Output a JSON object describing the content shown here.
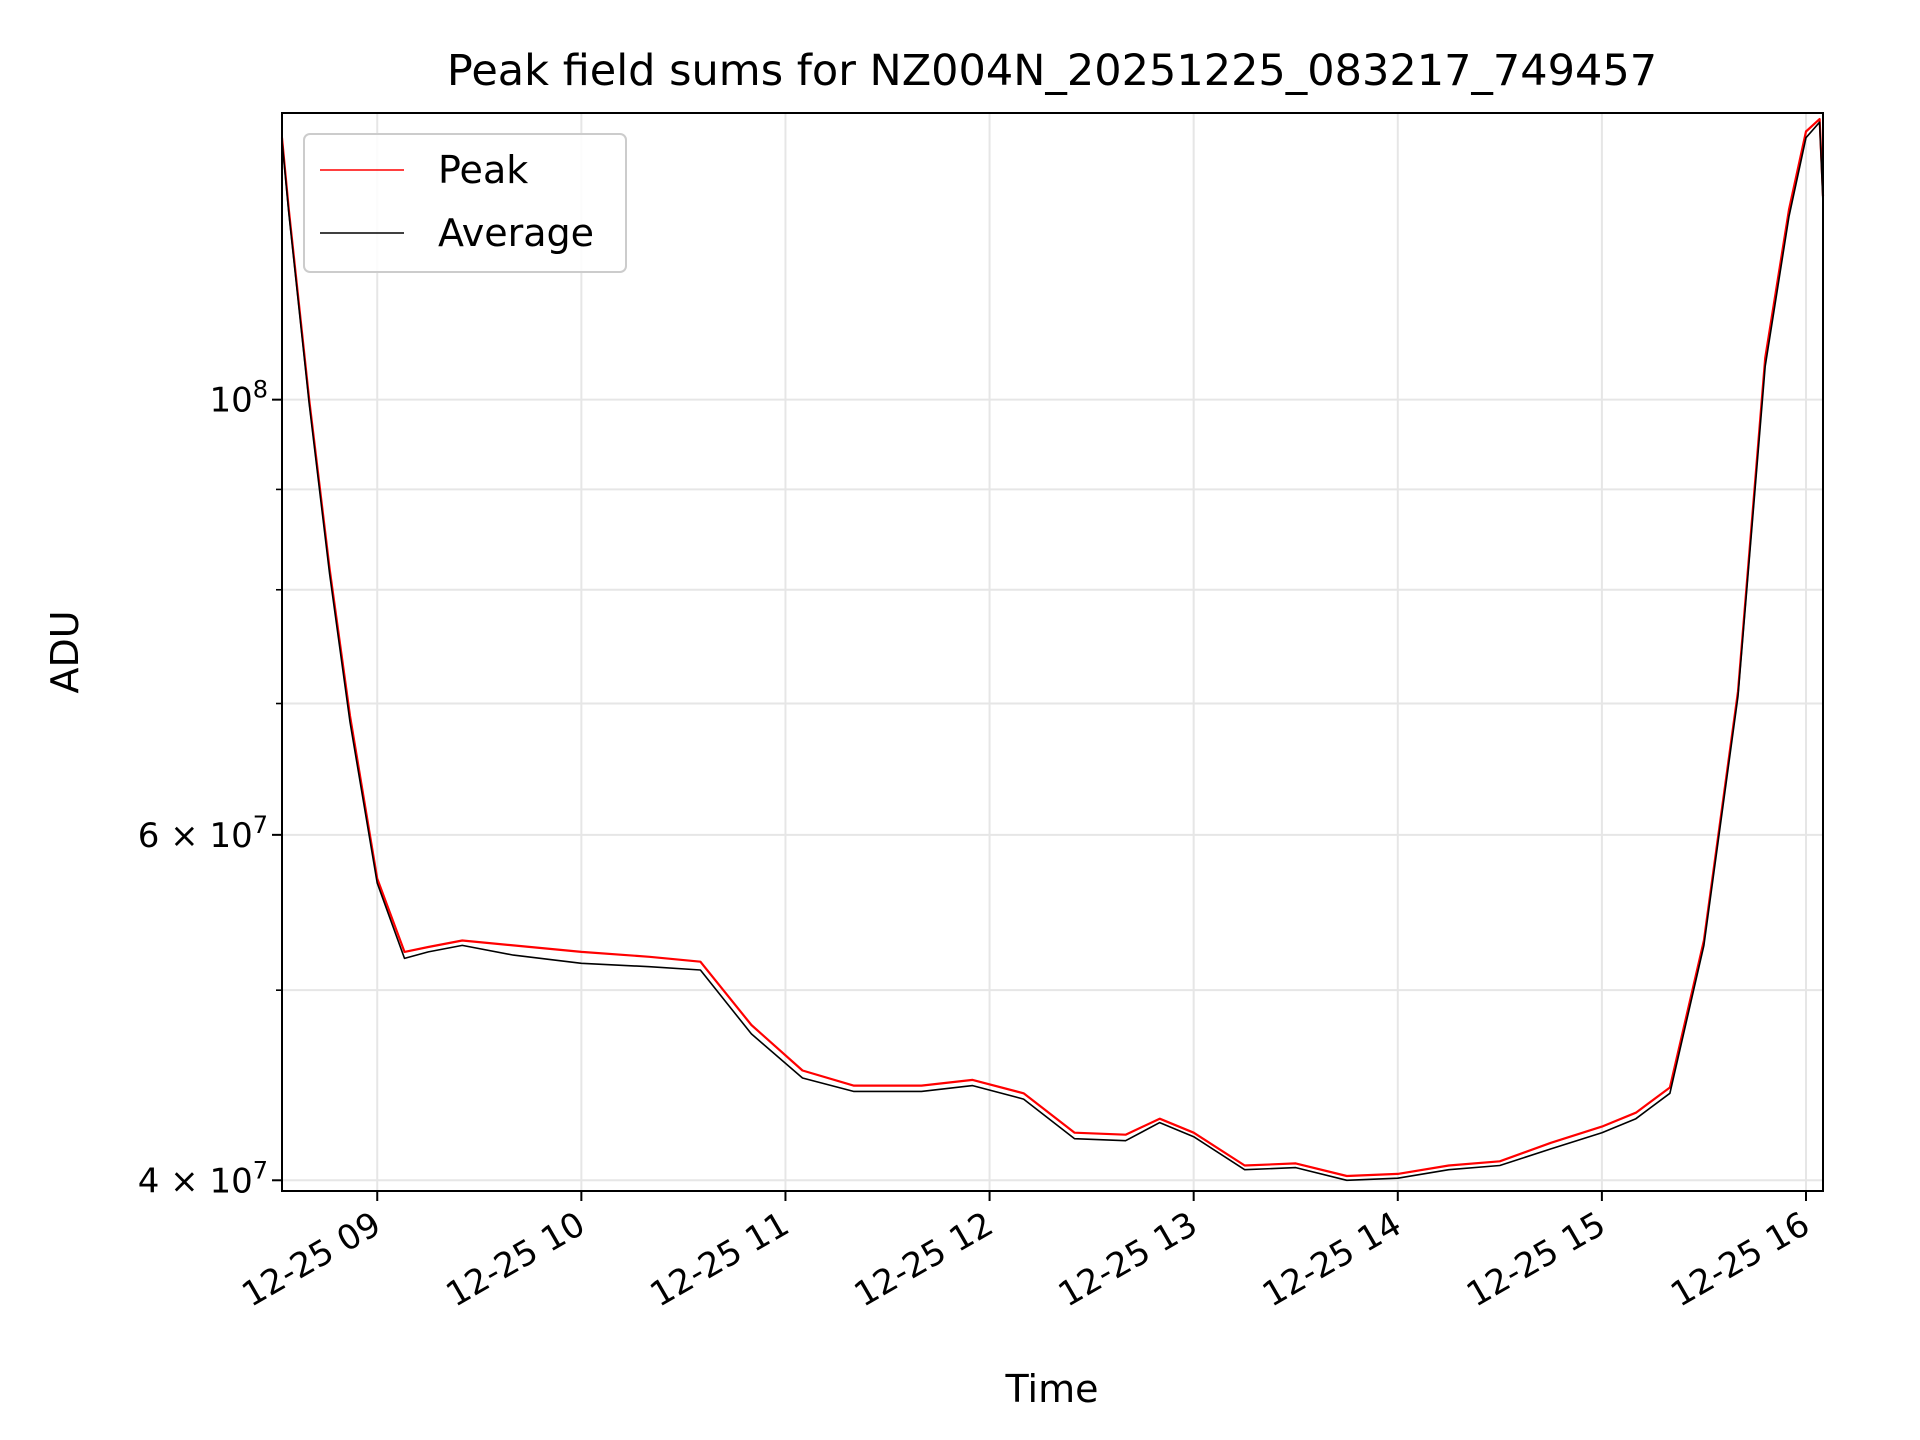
{
  "chart_data": {
    "type": "line",
    "title": "Peak field sums for NZ004N_20251225_083217_749457",
    "xlabel": "Time",
    "ylabel": "ADU",
    "y_scale": "log",
    "grid": true,
    "legend_position": "upper-left",
    "xlim": [
      "2025-12-25 08:32",
      "2025-12-25 16:05"
    ],
    "ylim": [
      39500000,
      140000000
    ],
    "x_ticks": [
      "12-25 09",
      "12-25 10",
      "12-25 11",
      "12-25 12",
      "12-25 13",
      "12-25 14",
      "12-25 15",
      "12-25 16"
    ],
    "y_ticks": [
      {
        "value": 40000000,
        "label_base": "4",
        "label_exp": "7"
      },
      {
        "value": 60000000,
        "label_base": "6",
        "label_exp": "7"
      },
      {
        "value": 100000000,
        "label_base": "",
        "label_exp": "8"
      }
    ],
    "y_minor_ticks": [
      50000000,
      70000000,
      80000000,
      90000000
    ],
    "series": [
      {
        "name": "Peak",
        "color": "#ff0000",
        "points": [
          [
            "2025-12-25 08:32",
            136000000
          ],
          [
            "2025-12-25 08:34",
            125000000
          ],
          [
            "2025-12-25 08:40",
            100000000
          ],
          [
            "2025-12-25 08:46",
            82000000
          ],
          [
            "2025-12-25 08:52",
            69000000
          ],
          [
            "2025-12-25 09:00",
            57000000
          ],
          [
            "2025-12-25 09:08",
            52300000
          ],
          [
            "2025-12-25 09:15",
            52600000
          ],
          [
            "2025-12-25 09:25",
            53000000
          ],
          [
            "2025-12-25 09:40",
            52700000
          ],
          [
            "2025-12-25 10:00",
            52300000
          ],
          [
            "2025-12-25 10:20",
            52000000
          ],
          [
            "2025-12-25 10:35",
            51700000
          ],
          [
            "2025-12-25 10:50",
            48000000
          ],
          [
            "2025-12-25 11:05",
            45500000
          ],
          [
            "2025-12-25 11:20",
            44700000
          ],
          [
            "2025-12-25 11:40",
            44700000
          ],
          [
            "2025-12-25 11:55",
            45000000
          ],
          [
            "2025-12-25 12:10",
            44300000
          ],
          [
            "2025-12-25 12:25",
            42300000
          ],
          [
            "2025-12-25 12:40",
            42200000
          ],
          [
            "2025-12-25 12:50",
            43000000
          ],
          [
            "2025-12-25 13:00",
            42300000
          ],
          [
            "2025-12-25 13:15",
            40700000
          ],
          [
            "2025-12-25 13:30",
            40800000
          ],
          [
            "2025-12-25 13:45",
            40200000
          ],
          [
            "2025-12-25 14:00",
            40300000
          ],
          [
            "2025-12-25 14:15",
            40700000
          ],
          [
            "2025-12-25 14:30",
            40900000
          ],
          [
            "2025-12-25 14:45",
            41800000
          ],
          [
            "2025-12-25 15:00",
            42600000
          ],
          [
            "2025-12-25 15:10",
            43300000
          ],
          [
            "2025-12-25 15:20",
            44600000
          ],
          [
            "2025-12-25 15:30",
            53000000
          ],
          [
            "2025-12-25 15:40",
            71000000
          ],
          [
            "2025-12-25 15:48",
            105000000
          ],
          [
            "2025-12-25 15:55",
            125000000
          ],
          [
            "2025-12-25 16:00",
            137000000
          ],
          [
            "2025-12-25 16:04",
            139000000
          ],
          [
            "2025-12-25 16:05",
            127000000
          ]
        ]
      },
      {
        "name": "Average",
        "color": "#000000",
        "points": [
          [
            "2025-12-25 08:32",
            135500000
          ],
          [
            "2025-12-25 08:34",
            124500000
          ],
          [
            "2025-12-25 08:40",
            99500000
          ],
          [
            "2025-12-25 08:46",
            81500000
          ],
          [
            "2025-12-25 08:52",
            68500000
          ],
          [
            "2025-12-25 09:00",
            56700000
          ],
          [
            "2025-12-25 09:08",
            51900000
          ],
          [
            "2025-12-25 09:15",
            52300000
          ],
          [
            "2025-12-25 09:25",
            52700000
          ],
          [
            "2025-12-25 09:40",
            52100000
          ],
          [
            "2025-12-25 10:00",
            51600000
          ],
          [
            "2025-12-25 10:20",
            51400000
          ],
          [
            "2025-12-25 10:35",
            51200000
          ],
          [
            "2025-12-25 10:50",
            47500000
          ],
          [
            "2025-12-25 11:05",
            45100000
          ],
          [
            "2025-12-25 11:20",
            44400000
          ],
          [
            "2025-12-25 11:40",
            44400000
          ],
          [
            "2025-12-25 11:55",
            44700000
          ],
          [
            "2025-12-25 12:10",
            44000000
          ],
          [
            "2025-12-25 12:25",
            42000000
          ],
          [
            "2025-12-25 12:40",
            41900000
          ],
          [
            "2025-12-25 12:50",
            42800000
          ],
          [
            "2025-12-25 13:00",
            42100000
          ],
          [
            "2025-12-25 13:15",
            40500000
          ],
          [
            "2025-12-25 13:30",
            40600000
          ],
          [
            "2025-12-25 13:45",
            40000000
          ],
          [
            "2025-12-25 14:00",
            40100000
          ],
          [
            "2025-12-25 14:15",
            40500000
          ],
          [
            "2025-12-25 14:30",
            40700000
          ],
          [
            "2025-12-25 14:45",
            41500000
          ],
          [
            "2025-12-25 15:00",
            42300000
          ],
          [
            "2025-12-25 15:10",
            43000000
          ],
          [
            "2025-12-25 15:20",
            44300000
          ],
          [
            "2025-12-25 15:30",
            52700000
          ],
          [
            "2025-12-25 15:40",
            70600000
          ],
          [
            "2025-12-25 15:48",
            104000000
          ],
          [
            "2025-12-25 15:55",
            124000000
          ],
          [
            "2025-12-25 16:00",
            136000000
          ],
          [
            "2025-12-25 16:04",
            138500000
          ],
          [
            "2025-12-25 16:05",
            126000000
          ]
        ]
      }
    ]
  }
}
